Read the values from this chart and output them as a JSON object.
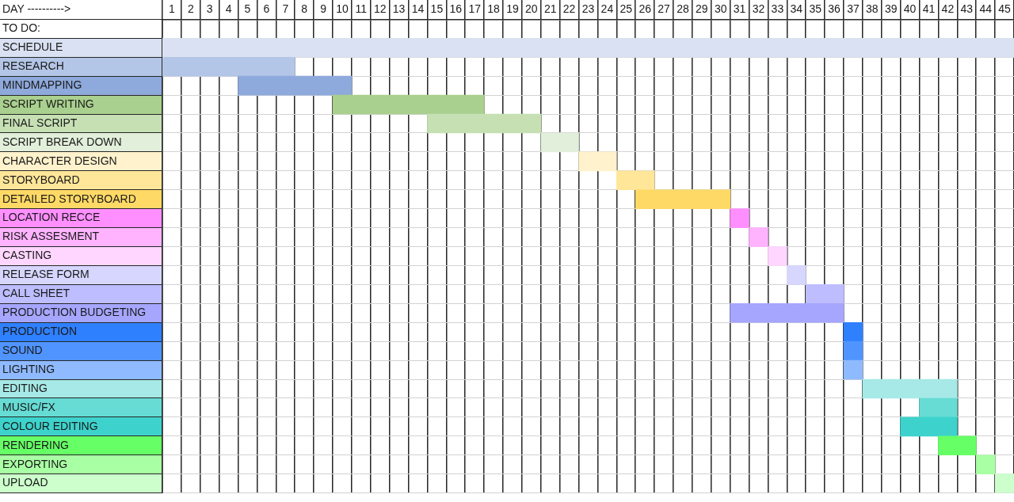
{
  "chart_data": {
    "type": "bar",
    "orientation": "horizontal",
    "xlabel": "DAY ---------->",
    "ylabel": "TO DO:",
    "categories": [
      "SCHEDULE",
      "RESEARCH",
      "MINDMAPPING",
      "SCRIPT WRITING",
      "FINAL SCRIPT",
      "SCRIPT BREAK DOWN",
      "CHARACTER DESIGN",
      "STORYBOARD",
      "DETAILED STORYBOARD",
      "LOCATION RECCE",
      "RISK ASSESMENT",
      "CASTING",
      "RELEASE FORM",
      "CALL SHEET",
      "PRODUCTION BUDGETING",
      "PRODUCTION",
      "SOUND",
      "LIGHTING",
      "EDITING",
      "MUSIC/FX",
      "COLOUR EDITING",
      "RENDERING",
      "EXPORTING",
      "UPLOAD"
    ],
    "base": [
      0.5,
      0.5,
      4.5,
      9.5,
      14.5,
      20.5,
      22.5,
      24.5,
      25.5,
      30.5,
      31.5,
      32.5,
      33.5,
      34.5,
      30.5,
      36.5,
      36.5,
      36.5,
      37.5,
      40.5,
      39.5,
      41.5,
      43.5,
      44.5
    ],
    "values": [
      45,
      7,
      6,
      8,
      6,
      2,
      2,
      2,
      5,
      1,
      1,
      1,
      1,
      2,
      6,
      1,
      1,
      1,
      5,
      2,
      3,
      2,
      1,
      1
    ],
    "colors": [
      "#d9e1f2",
      "#b4c6e7",
      "#8ea9db",
      "#a9d08e",
      "#c6e0b4",
      "#e2efda",
      "#fff2cc",
      "#ffe699",
      "#ffd966",
      "#ff8fff",
      "#ffb3ff",
      "#ffd6ff",
      "#d6d6ff",
      "#bdbdff",
      "#a6a6ff",
      "#2f80ff",
      "#5094ff",
      "#8fbaff",
      "#a6e9e6",
      "#66dcd5",
      "#3dd3cc",
      "#66ff66",
      "#a9ffa3",
      "#ccffcc"
    ],
    "xlim": [
      0.5,
      45.5
    ],
    "xticks": [
      1,
      2,
      3,
      4,
      5,
      6,
      7,
      8,
      9,
      10,
      11,
      12,
      13,
      14,
      15,
      16,
      17,
      18,
      19,
      20,
      21,
      22,
      23,
      24,
      25,
      26,
      27,
      28,
      29,
      30,
      31,
      32,
      33,
      34,
      35,
      36,
      37,
      38,
      39,
      40,
      41,
      42,
      43,
      44,
      45
    ],
    "grid": true
  }
}
